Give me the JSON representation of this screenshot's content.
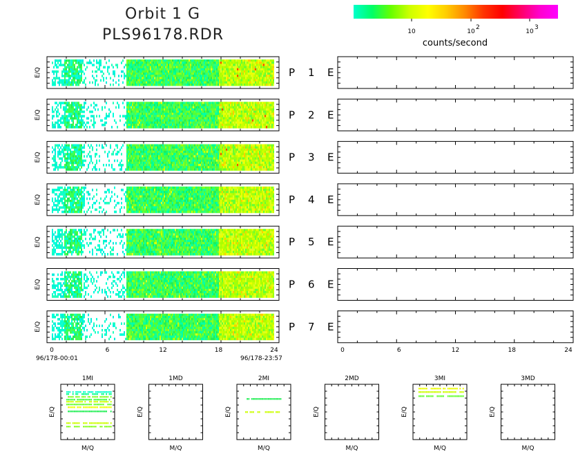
{
  "header": {
    "title_line1": "Orbit 1 G",
    "title_line2": "PLS96178.RDR"
  },
  "colorbar": {
    "label": "counts/second",
    "ticks": [
      "10",
      "10",
      "10"
    ],
    "tick_exponents": [
      "",
      "2",
      "3"
    ],
    "colors": [
      "#00ffcc",
      "#00ff66",
      "#66ff00",
      "#ccff00",
      "#ffff00",
      "#ffcc00",
      "#ff8800",
      "#ff3300",
      "#ff0000",
      "#ff0066",
      "#ff00cc",
      "#ff00ff"
    ]
  },
  "chart_data": [
    {
      "type": "heatmap",
      "title": "",
      "ylabel": "E/Q",
      "xlabel": "",
      "x_ticks": [
        "0",
        "6",
        "12",
        "18",
        "24"
      ],
      "xlim": [
        0,
        24
      ],
      "start_time": "96/178-00:01",
      "end_time": "96/178-23:57",
      "panels": [
        {
          "label_left": "P",
          "number": "1",
          "label_right": "E"
        },
        {
          "label_left": "P",
          "number": "2",
          "label_right": "E"
        },
        {
          "label_left": "P",
          "number": "3",
          "label_right": "E"
        },
        {
          "label_left": "P",
          "number": "4",
          "label_right": "E"
        },
        {
          "label_left": "P",
          "number": "5",
          "label_right": "E"
        },
        {
          "label_left": "P",
          "number": "6",
          "label_right": "E"
        },
        {
          "label_left": "P",
          "number": "7",
          "label_right": "E"
        }
      ],
      "time_segments": [
        {
          "from": 0,
          "to": 3.5,
          "level": "low-sparse"
        },
        {
          "from": 3.5,
          "to": 8,
          "level": "very-sparse"
        },
        {
          "from": 8,
          "to": 18,
          "level": "green"
        },
        {
          "from": 18,
          "to": 24,
          "level": "yellow-green"
        }
      ]
    },
    {
      "type": "heatmap",
      "title": "",
      "ylabel": "",
      "x_ticks": [
        "0",
        "6",
        "12",
        "18",
        "24"
      ],
      "xlim": [
        0,
        24
      ],
      "panels_empty": 7
    },
    {
      "type": "scatter",
      "subplots": [
        {
          "title": "1MI",
          "xlabel": "M/Q",
          "ylabel": "E/Q",
          "has_data": true
        },
        {
          "title": "1MD",
          "xlabel": "M/Q",
          "ylabel": "E/Q",
          "has_data": false
        },
        {
          "title": "2MI",
          "xlabel": "M/Q",
          "ylabel": "E/Q",
          "has_data": true
        },
        {
          "title": "2MD",
          "xlabel": "M/Q",
          "ylabel": "E/Q",
          "has_data": false
        },
        {
          "title": "3MI",
          "xlabel": "M/Q",
          "ylabel": "E/Q",
          "has_data": true
        },
        {
          "title": "3MD",
          "xlabel": "M/Q",
          "ylabel": "E/Q",
          "has_data": false
        }
      ]
    }
  ]
}
